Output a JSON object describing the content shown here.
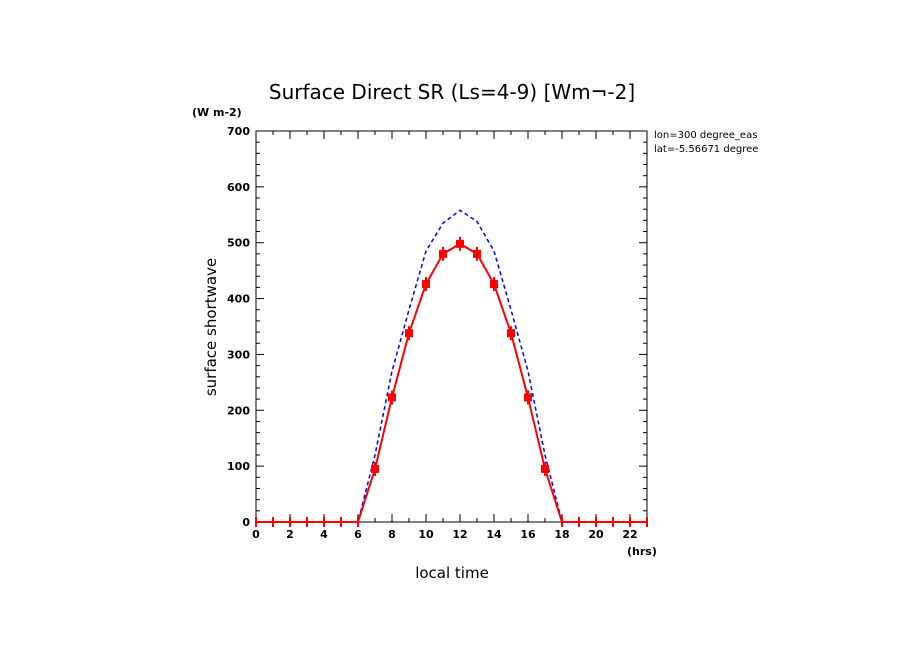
{
  "chart_data": {
    "type": "line",
    "title": "Surface Direct SR (Ls=4-9) [Wm¬-2]",
    "ylabel": "surface shortwave",
    "yunit": "(W m-2)",
    "xlabel": "local time",
    "xunit": "(hrs)",
    "xlim": [
      0,
      23
    ],
    "ylim": [
      0,
      700
    ],
    "xticks": [
      0,
      2,
      4,
      6,
      8,
      10,
      12,
      14,
      16,
      18,
      20,
      22
    ],
    "yticks": [
      0,
      100,
      200,
      300,
      400,
      500,
      600,
      700
    ],
    "annotations": [
      "lon=300 degree_eas",
      "lat=-5.56671 degree"
    ],
    "grid": false,
    "x": [
      0,
      1,
      2,
      3,
      4,
      5,
      6,
      7,
      8,
      9,
      10,
      11,
      12,
      13,
      14,
      15,
      16,
      17,
      18,
      19,
      20,
      21,
      22,
      23
    ],
    "series": [
      {
        "color": "#ff0000",
        "style": "solid-with-error-markers",
        "values": [
          0,
          0,
          0,
          0,
          0,
          0,
          0,
          95,
          223,
          338,
          426,
          480,
          498,
          480,
          426,
          338,
          223,
          95,
          0,
          0,
          0,
          0,
          0,
          0
        ]
      },
      {
        "color": "#0000ff",
        "style": "dashed",
        "values": [
          0,
          0,
          0,
          0,
          0,
          0,
          0,
          120,
          270,
          380,
          485,
          535,
          558,
          538,
          485,
          380,
          270,
          120,
          0,
          0,
          0,
          0,
          0,
          0
        ]
      }
    ]
  }
}
